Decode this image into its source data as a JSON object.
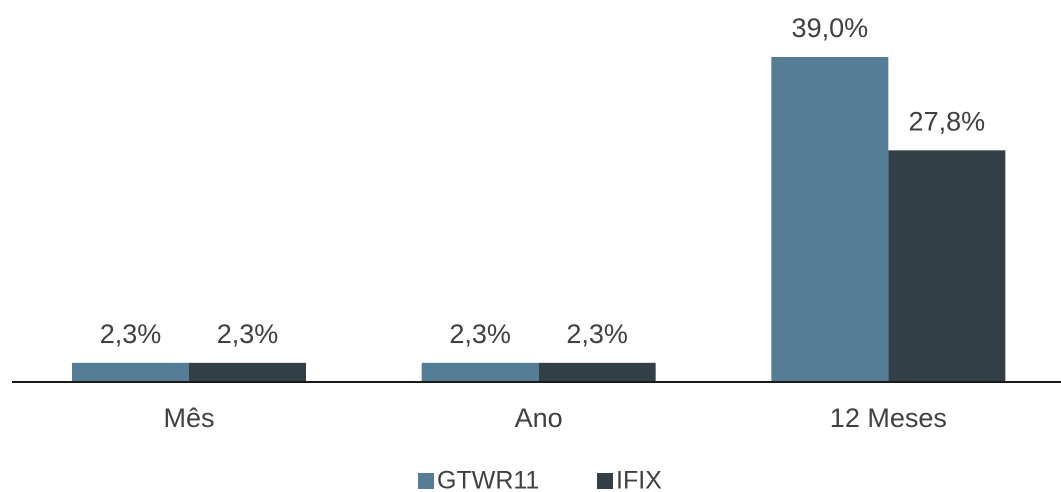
{
  "chart_data": {
    "type": "bar",
    "categories": [
      "Mês",
      "Ano",
      "12 Meses"
    ],
    "series": [
      {
        "name": "GTWR11",
        "color": "#557d96",
        "values": [
          2.3,
          2.3,
          39.0
        ],
        "value_labels": [
          "2,3%",
          "2,3%",
          "39,0%"
        ]
      },
      {
        "name": "IFIX",
        "color": "#333f46",
        "values": [
          2.3,
          2.3,
          27.8
        ],
        "value_labels": [
          "2,3%",
          "2,3%",
          "27,8%"
        ]
      }
    ]
  }
}
